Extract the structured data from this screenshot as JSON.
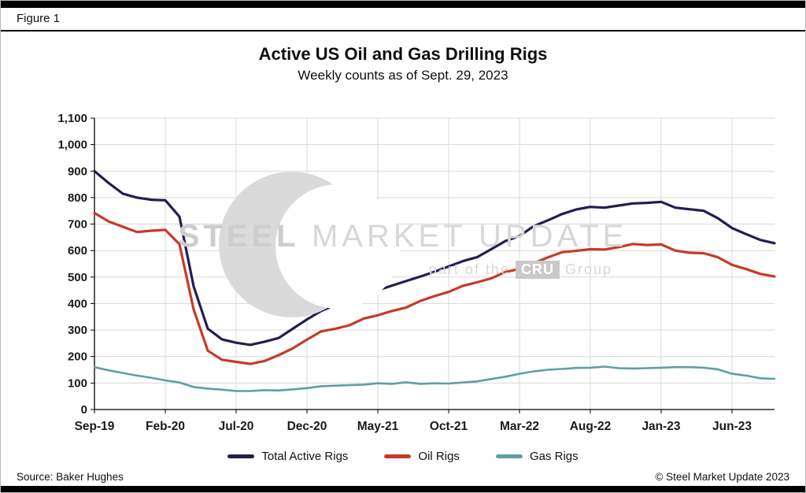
{
  "figure_label": "Figure 1",
  "watermark": {
    "word1": "STEEL",
    "word2": "MARKET UPDATE",
    "sub_prefix": "part of the",
    "sub_box": "CRU",
    "sub_suffix": "Group"
  },
  "footer": {
    "source": "Source: Baker Hughes",
    "copyright": "© Steel Market Update 2023"
  },
  "chart_data": {
    "type": "line",
    "title": "Active US Oil and Gas Drilling Rigs",
    "subtitle": "Weekly counts as of Sept. 29, 2023",
    "xlabel": "",
    "ylabel": "",
    "ylim": [
      0,
      1100
    ],
    "y_tick_step": 100,
    "x_domain": [
      0,
      48
    ],
    "x_unit": "months since Sep-2019",
    "x_tick_positions": [
      0,
      5,
      10,
      15,
      20,
      25,
      30,
      35,
      40,
      45
    ],
    "x_tick_labels": [
      "Sep-19",
      "Feb-20",
      "Jul-20",
      "Dec-20",
      "May-21",
      "Oct-21",
      "Mar-22",
      "Aug-22",
      "Jan-23",
      "Jun-23"
    ],
    "grid": true,
    "grid_color": "#d9d9d9",
    "axis_color": "#000000",
    "legend_position": "bottom",
    "series": [
      {
        "name": "Total Active Rigs",
        "color": "#221e50",
        "values": [
          900,
          855,
          815,
          800,
          792,
          790,
          728,
          465,
          305,
          265,
          252,
          244,
          256,
          270,
          305,
          340,
          372,
          395,
          415,
          435,
          450,
          468,
          485,
          502,
          520,
          540,
          560,
          575,
          605,
          636,
          655,
          692,
          714,
          738,
          755,
          765,
          762,
          770,
          778,
          780,
          784,
          762,
          756,
          750,
          722,
          685,
          662,
          640,
          628
        ]
      },
      {
        "name": "Oil Rigs",
        "color": "#c63b27",
        "values": [
          742,
          710,
          690,
          670,
          675,
          678,
          624,
          378,
          222,
          188,
          180,
          172,
          183,
          205,
          231,
          264,
          295,
          305,
          318,
          343,
          356,
          372,
          385,
          410,
          428,
          444,
          467,
          480,
          495,
          519,
          531,
          552,
          574,
          594,
          599,
          605,
          604,
          613,
          625,
          621,
          623,
          600,
          592,
          590,
          575,
          546,
          530,
          512,
          502
        ]
      },
      {
        "name": "Gas Rigs",
        "color": "#5e9fa4",
        "values": [
          160,
          148,
          138,
          128,
          120,
          110,
          102,
          85,
          79,
          75,
          70,
          70,
          73,
          72,
          76,
          81,
          88,
          90,
          92,
          94,
          99,
          97,
          103,
          97,
          99,
          98,
          102,
          106,
          115,
          124,
          135,
          144,
          150,
          153,
          157,
          158,
          162,
          156,
          155,
          156,
          158,
          160,
          160,
          158,
          152,
          135,
          128,
          118,
          116
        ]
      }
    ]
  }
}
